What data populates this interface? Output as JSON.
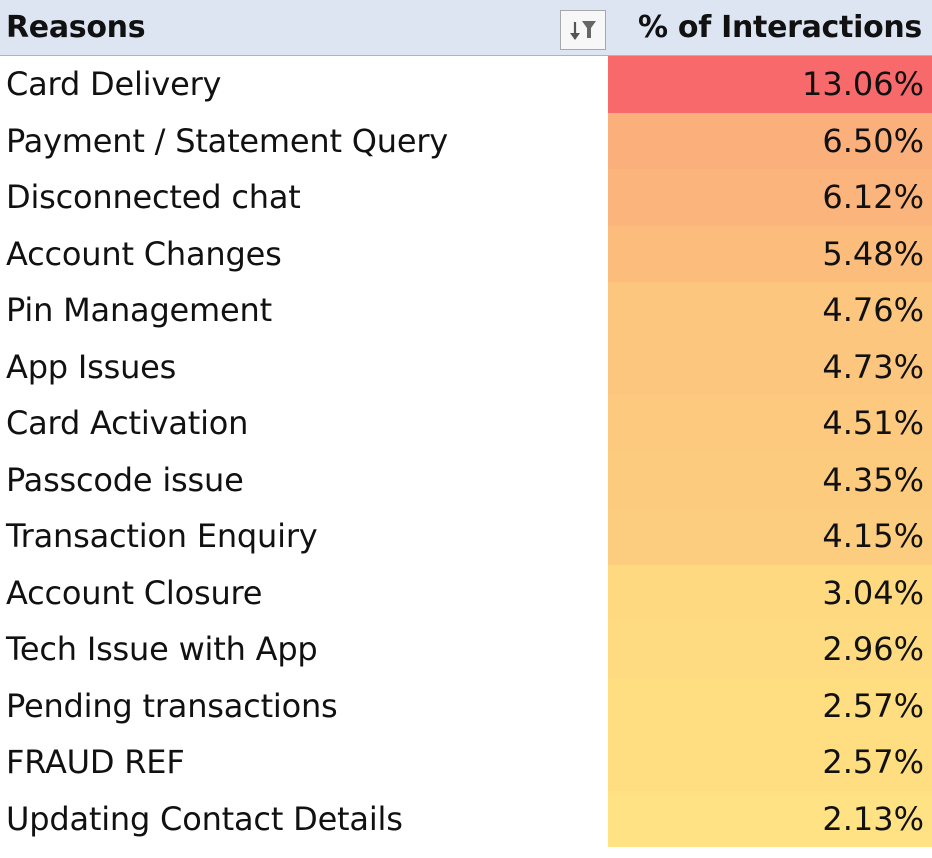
{
  "table": {
    "header": {
      "reasons": "Reasons",
      "value": "% of Interactions",
      "filter_icon": "sort-filter-icon"
    },
    "rows": [
      {
        "reason": "Card Delivery",
        "value": "13.06%",
        "color": "#f8696b"
      },
      {
        "reason": "Payment / Statement Query",
        "value": "6.50%",
        "color": "#fbaf7b"
      },
      {
        "reason": "Disconnected chat",
        "value": "6.12%",
        "color": "#fbb47c"
      },
      {
        "reason": "Account Changes",
        "value": "5.48%",
        "color": "#fcbd7c"
      },
      {
        "reason": "Pin Management",
        "value": "4.76%",
        "color": "#fcc67e"
      },
      {
        "reason": "App Issues",
        "value": "4.73%",
        "color": "#fcc67e"
      },
      {
        "reason": "Card Activation",
        "value": "4.51%",
        "color": "#fdc97e"
      },
      {
        "reason": "Passcode issue",
        "value": "4.35%",
        "color": "#fdcb7e"
      },
      {
        "reason": "Transaction Enquiry",
        "value": "4.15%",
        "color": "#fdcd7f"
      },
      {
        "reason": "Account Closure",
        "value": "3.04%",
        "color": "#fed97f"
      },
      {
        "reason": "Tech Issue with App",
        "value": "2.96%",
        "color": "#feda80"
      },
      {
        "reason": "Pending transactions",
        "value": "2.57%",
        "color": "#fede81"
      },
      {
        "reason": "FRAUD REF",
        "value": "2.57%",
        "color": "#fede81"
      },
      {
        "reason": "Updating Contact Details",
        "value": "2.13%",
        "color": "#ffe283"
      }
    ]
  }
}
